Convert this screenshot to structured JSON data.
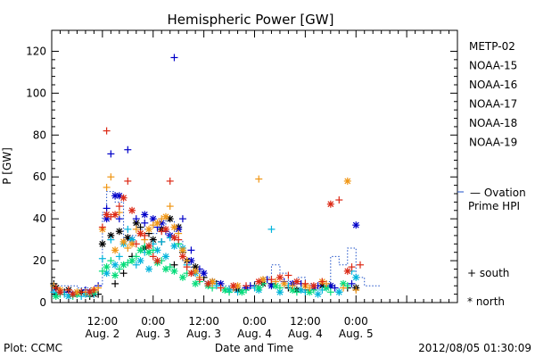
{
  "chart_data": {
    "type": "scatter",
    "title": "Hemispheric Power [GW]",
    "ylabel": "P [GW]",
    "xlabel": "Date and Time",
    "ylim": [
      0,
      130
    ],
    "xlim": [
      0,
      96
    ],
    "x_unit": "hours since Aug. 1 00:00 (time axis)",
    "yticks": [
      0,
      20,
      40,
      60,
      80,
      100,
      120
    ],
    "xticks": [
      {
        "x": 12,
        "time": "12:00",
        "date": "Aug. 2"
      },
      {
        "x": 24,
        "time": "0:00",
        "date": "Aug. 3"
      },
      {
        "x": 36,
        "time": "12:00",
        "date": "Aug. 3"
      },
      {
        "x": 48,
        "time": "0:00",
        "date": "Aug. 4"
      },
      {
        "x": 60,
        "time": "12:00",
        "date": "Aug. 4"
      },
      {
        "x": 72,
        "time": "0:00",
        "date": "Aug. 5"
      }
    ],
    "legend_position": "right",
    "series": [
      {
        "name": "METP-02",
        "color": "#000000",
        "south": [
          [
            0.5,
            9
          ],
          [
            3,
            5
          ],
          [
            6,
            4
          ],
          [
            9,
            3
          ],
          [
            11,
            4
          ],
          [
            15,
            9
          ],
          [
            17,
            14
          ],
          [
            19,
            22
          ],
          [
            21,
            36
          ],
          [
            23,
            33
          ],
          [
            26,
            29
          ],
          [
            29,
            18
          ],
          [
            31,
            24
          ],
          [
            34,
            15
          ],
          [
            36,
            12
          ],
          [
            39,
            9
          ],
          [
            42,
            6
          ],
          [
            48,
            8
          ],
          [
            52,
            9
          ],
          [
            56,
            7
          ],
          [
            60,
            6
          ],
          [
            66,
            8
          ],
          [
            70,
            7
          ]
        ],
        "north": [
          [
            1,
            7
          ],
          [
            4,
            6
          ],
          [
            7,
            5
          ],
          [
            10,
            4
          ],
          [
            12,
            28
          ],
          [
            14,
            32
          ],
          [
            16,
            34
          ],
          [
            18,
            31
          ],
          [
            20,
            38
          ],
          [
            22,
            26
          ],
          [
            24,
            30
          ],
          [
            26,
            35
          ],
          [
            28,
            40
          ],
          [
            30,
            36
          ],
          [
            32,
            20
          ],
          [
            34,
            17
          ],
          [
            38,
            10
          ],
          [
            44,
            6
          ],
          [
            50,
            9
          ],
          [
            58,
            6
          ],
          [
            64,
            8
          ],
          [
            72,
            7
          ]
        ]
      },
      {
        "name": "NOAA-15",
        "color": "#0000c8",
        "south": [
          [
            1,
            6
          ],
          [
            4,
            5
          ],
          [
            8,
            6
          ],
          [
            11,
            8
          ],
          [
            13,
            45
          ],
          [
            14,
            71
          ],
          [
            16,
            40
          ],
          [
            18,
            73
          ],
          [
            20,
            40
          ],
          [
            22,
            38
          ],
          [
            25,
            36
          ],
          [
            27,
            34
          ],
          [
            29,
            117
          ],
          [
            31,
            40
          ],
          [
            33,
            25
          ],
          [
            35,
            16
          ],
          [
            38,
            10
          ],
          [
            43,
            7
          ],
          [
            47,
            8
          ],
          [
            51,
            11
          ],
          [
            55,
            10
          ],
          [
            59,
            9
          ],
          [
            63,
            8
          ],
          [
            67,
            7
          ],
          [
            71,
            9
          ]
        ],
        "north": [
          [
            2,
            5
          ],
          [
            5,
            4
          ],
          [
            9,
            5
          ],
          [
            13,
            40
          ],
          [
            15,
            51
          ],
          [
            16,
            51
          ],
          [
            19,
            30
          ],
          [
            22,
            42
          ],
          [
            24,
            40
          ],
          [
            26,
            38
          ],
          [
            28,
            32
          ],
          [
            30,
            35
          ],
          [
            33,
            20
          ],
          [
            36,
            14
          ],
          [
            40,
            9
          ],
          [
            46,
            7
          ],
          [
            52,
            8
          ],
          [
            57,
            9
          ],
          [
            62,
            7
          ],
          [
            66,
            8
          ],
          [
            72,
            37
          ]
        ]
      },
      {
        "name": "NOAA-16",
        "color": "#00b4dc",
        "south": [
          [
            0.5,
            5
          ],
          [
            3,
            4
          ],
          [
            7,
            3
          ],
          [
            10,
            4
          ],
          [
            12,
            21
          ],
          [
            14,
            30
          ],
          [
            16,
            22
          ],
          [
            18,
            35
          ],
          [
            20,
            18
          ],
          [
            22,
            24
          ],
          [
            24,
            28
          ],
          [
            26,
            29
          ],
          [
            28,
            31
          ],
          [
            30,
            28
          ],
          [
            32,
            18
          ],
          [
            35,
            12
          ],
          [
            39,
            8
          ],
          [
            44,
            5
          ],
          [
            48,
            7
          ],
          [
            52,
            35
          ],
          [
            56,
            8
          ],
          [
            60,
            5
          ],
          [
            64,
            6
          ],
          [
            68,
            5
          ],
          [
            71,
            15
          ]
        ],
        "north": [
          [
            1,
            4
          ],
          [
            4,
            3
          ],
          [
            8,
            4
          ],
          [
            13,
            14
          ],
          [
            15,
            18
          ],
          [
            17,
            28
          ],
          [
            19,
            30
          ],
          [
            21,
            20
          ],
          [
            23,
            16
          ],
          [
            25,
            25
          ],
          [
            27,
            22
          ],
          [
            29,
            27
          ],
          [
            31,
            26
          ],
          [
            34,
            14
          ],
          [
            37,
            9
          ],
          [
            42,
            6
          ],
          [
            49,
            6
          ],
          [
            54,
            5
          ],
          [
            59,
            6
          ],
          [
            63,
            4
          ],
          [
            68,
            5
          ],
          [
            72,
            12
          ]
        ]
      },
      {
        "name": "NOAA-17",
        "color": "#00dc78",
        "south": [
          [
            2,
            4
          ],
          [
            5,
            3
          ],
          [
            9,
            4
          ],
          [
            12,
            15
          ],
          [
            14,
            20
          ],
          [
            16,
            16
          ],
          [
            18,
            19
          ],
          [
            20,
            22
          ],
          [
            22,
            27
          ],
          [
            24,
            25
          ],
          [
            26,
            20
          ],
          [
            28,
            17
          ],
          [
            30,
            28
          ],
          [
            32,
            14
          ],
          [
            35,
            10
          ],
          [
            38,
            7
          ],
          [
            42,
            5
          ],
          [
            46,
            6
          ],
          [
            50,
            9
          ],
          [
            54,
            7
          ],
          [
            58,
            5
          ],
          [
            62,
            6
          ],
          [
            66,
            5
          ],
          [
            70,
            8
          ]
        ],
        "north": [
          [
            1,
            3
          ],
          [
            6,
            4
          ],
          [
            10,
            5
          ],
          [
            13,
            17
          ],
          [
            15,
            13
          ],
          [
            17,
            18
          ],
          [
            19,
            20
          ],
          [
            21,
            25
          ],
          [
            23,
            24
          ],
          [
            25,
            19
          ],
          [
            27,
            16
          ],
          [
            29,
            15
          ],
          [
            31,
            12
          ],
          [
            34,
            9
          ],
          [
            37,
            8
          ],
          [
            41,
            6
          ],
          [
            45,
            5
          ],
          [
            49,
            7
          ],
          [
            53,
            8
          ],
          [
            57,
            6
          ],
          [
            61,
            5
          ],
          [
            65,
            7
          ],
          [
            69,
            9
          ]
        ]
      },
      {
        "name": "NOAA-18",
        "color": "#f09614",
        "south": [
          [
            0.5,
            8
          ],
          [
            4,
            6
          ],
          [
            8,
            5
          ],
          [
            11,
            7
          ],
          [
            13,
            55
          ],
          [
            14,
            60
          ],
          [
            16,
            43
          ],
          [
            18,
            26
          ],
          [
            20,
            35
          ],
          [
            22,
            30
          ],
          [
            24,
            37
          ],
          [
            26,
            40
          ],
          [
            28,
            46
          ],
          [
            30,
            33
          ],
          [
            32,
            20
          ],
          [
            35,
            12
          ],
          [
            38,
            9
          ],
          [
            43,
            7
          ],
          [
            49,
            59
          ],
          [
            53,
            10
          ],
          [
            57,
            8
          ],
          [
            61,
            7
          ],
          [
            65,
            9
          ],
          [
            69,
            7
          ],
          [
            72,
            6
          ]
        ],
        "north": [
          [
            2,
            6
          ],
          [
            6,
            5
          ],
          [
            10,
            6
          ],
          [
            12,
            35
          ],
          [
            15,
            25
          ],
          [
            17,
            29
          ],
          [
            19,
            28
          ],
          [
            21,
            33
          ],
          [
            23,
            35
          ],
          [
            25,
            38
          ],
          [
            27,
            41
          ],
          [
            29,
            36
          ],
          [
            31,
            25
          ],
          [
            34,
            15
          ],
          [
            38,
            10
          ],
          [
            44,
            8
          ],
          [
            50,
            11
          ],
          [
            55,
            9
          ],
          [
            60,
            8
          ],
          [
            64,
            10
          ],
          [
            70,
            58
          ]
        ]
      },
      {
        "name": "NOAA-19",
        "color": "#dc2814",
        "south": [
          [
            1,
            7
          ],
          [
            4,
            6
          ],
          [
            7,
            5
          ],
          [
            10,
            6
          ],
          [
            12,
            36
          ],
          [
            13,
            82
          ],
          [
            14,
            41
          ],
          [
            16,
            46
          ],
          [
            18,
            58
          ],
          [
            20,
            28
          ],
          [
            22,
            32
          ],
          [
            24,
            22
          ],
          [
            26,
            34
          ],
          [
            28,
            58
          ],
          [
            30,
            30
          ],
          [
            32,
            17
          ],
          [
            35,
            11
          ],
          [
            40,
            7
          ],
          [
            46,
            8
          ],
          [
            52,
            11
          ],
          [
            56,
            13
          ],
          [
            60,
            9
          ],
          [
            64,
            10
          ],
          [
            68,
            49
          ],
          [
            71,
            17
          ],
          [
            73,
            18
          ]
        ],
        "north": [
          [
            2,
            5
          ],
          [
            5,
            4
          ],
          [
            9,
            5
          ],
          [
            13,
            42
          ],
          [
            15,
            42
          ],
          [
            17,
            50
          ],
          [
            19,
            44
          ],
          [
            21,
            33
          ],
          [
            23,
            27
          ],
          [
            25,
            20
          ],
          [
            27,
            35
          ],
          [
            29,
            31
          ],
          [
            31,
            22
          ],
          [
            33,
            14
          ],
          [
            37,
            9
          ],
          [
            43,
            8
          ],
          [
            49,
            10
          ],
          [
            54,
            12
          ],
          [
            58,
            10
          ],
          [
            62,
            8
          ],
          [
            66,
            47
          ],
          [
            70,
            15
          ]
        ]
      }
    ],
    "reference": {
      "name": "Ovation Prime HPI",
      "label_line1": "— Ovation",
      "label_line2": "Prime HPI",
      "color": "#1e50c8",
      "current_value": 53,
      "steps": [
        [
          0,
          8
        ],
        [
          6,
          7
        ],
        [
          10,
          8
        ],
        [
          12,
          43
        ],
        [
          13,
          53
        ],
        [
          15,
          48
        ],
        [
          17,
          30
        ],
        [
          19,
          32
        ],
        [
          21,
          35
        ],
        [
          23,
          33
        ],
        [
          25,
          36
        ],
        [
          27,
          39
        ],
        [
          29,
          30
        ],
        [
          31,
          20
        ],
        [
          33,
          15
        ],
        [
          36,
          10
        ],
        [
          40,
          8
        ],
        [
          44,
          7
        ],
        [
          48,
          10
        ],
        [
          50,
          12
        ],
        [
          52,
          18
        ],
        [
          54,
          14
        ],
        [
          56,
          10
        ],
        [
          58,
          12
        ],
        [
          60,
          9
        ],
        [
          62,
          8
        ],
        [
          64,
          10
        ],
        [
          66,
          22
        ],
        [
          68,
          18
        ],
        [
          70,
          26
        ],
        [
          72,
          12
        ],
        [
          74,
          8
        ],
        [
          76,
          8
        ]
      ]
    },
    "symbol_legend": {
      "south": "+ south",
      "north": "* north"
    },
    "footer": {
      "left": "Plot: CCMC",
      "right": "2012/08/05 01:30:09"
    }
  }
}
